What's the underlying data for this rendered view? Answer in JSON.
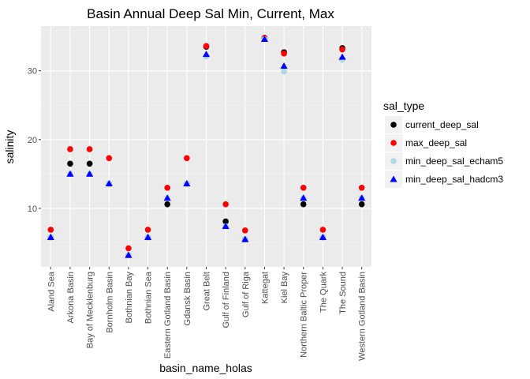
{
  "chart_data": {
    "type": "scatter",
    "title": "Basin Annual Deep Sal Min, Current, Max",
    "xlabel": "basin_name_holas",
    "ylabel": "salinity",
    "categories": [
      "Aland Sea",
      "Arkona Basin",
      "Bay of Mecklenburg",
      "Bornholm Basin",
      "Bothnian Bay",
      "Bothnian Sea",
      "Eastern Gotland Basin",
      "Gdansk Basin",
      "Great Belt",
      "Gulf of Finland",
      "Gulf of Riga",
      "Kattegat",
      "Kiel Bay",
      "Northern Baltic Proper",
      "The Quark",
      "The Sound",
      "Western Gotland Basin"
    ],
    "ylim": [
      1.5,
      36.5
    ],
    "yticks": [
      10,
      20,
      30
    ],
    "ytick_labels": [
      "10",
      "20",
      "30"
    ],
    "grid": true,
    "legend": {
      "title": "sal_type",
      "placement": "right"
    },
    "series": [
      {
        "name": "current_deep_sal",
        "color": "#000000",
        "shape": "circle",
        "values": [
          5.8,
          16.5,
          16.5,
          13.6,
          3.2,
          5.8,
          10.6,
          13.6,
          33.5,
          8.1,
          5.5,
          34.7,
          32.7,
          10.6,
          5.8,
          33.3,
          10.6
        ]
      },
      {
        "name": "max_deep_sal",
        "color": "#ff0000",
        "shape": "circle",
        "values": [
          6.9,
          18.6,
          18.6,
          17.3,
          4.2,
          6.9,
          13.0,
          17.3,
          33.6,
          10.6,
          6.8,
          34.8,
          32.5,
          13.0,
          6.9,
          33.1,
          13.0
        ]
      },
      {
        "name": "min_deep_sal_echam5",
        "color": "#add8e6",
        "shape": "circle",
        "values": [
          5.8,
          15.0,
          15.0,
          13.6,
          3.2,
          5.8,
          11.5,
          13.6,
          32.1,
          7.4,
          5.5,
          34.6,
          29.9,
          11.5,
          5.8,
          31.6,
          11.5
        ]
      },
      {
        "name": "min_deep_sal_hadcm3",
        "color": "#0000ff",
        "shape": "triangle",
        "values": [
          5.8,
          15.0,
          15.0,
          13.6,
          3.2,
          5.8,
          11.5,
          13.6,
          32.4,
          7.4,
          5.5,
          34.6,
          30.7,
          11.5,
          5.8,
          32.0,
          11.5
        ]
      }
    ]
  }
}
